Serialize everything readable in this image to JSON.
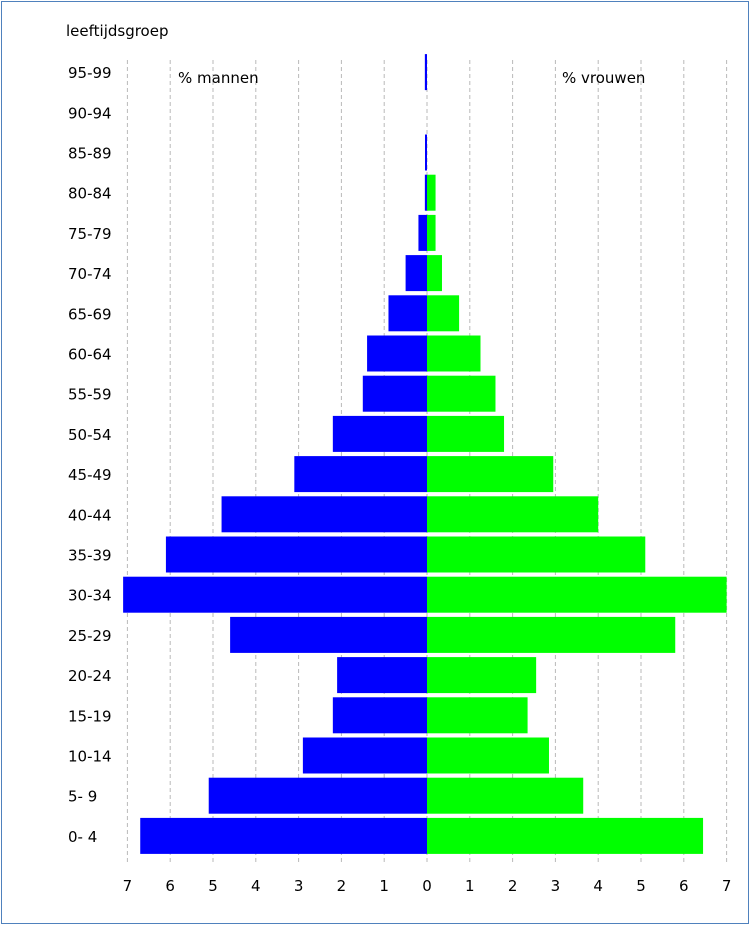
{
  "chart_data": {
    "type": "bar",
    "title": "leeftijdsgroep",
    "left_label": "% mannen",
    "right_label": "% vrouwen",
    "categories": [
      "95-99",
      "90-94",
      "85-89",
      "80-84",
      "75-79",
      "70-74",
      "65-69",
      "60-64",
      "55-59",
      "50-54",
      "45-49",
      "40-44",
      "35-39",
      "30-34",
      "25-29",
      "20-24",
      "15-19",
      "10-14",
      "5- 9",
      "0- 4"
    ],
    "series": [
      {
        "name": "% mannen",
        "color": "#0000ff",
        "values": [
          0.05,
          0,
          0.03,
          0.05,
          0.2,
          0.5,
          0.9,
          1.4,
          1.5,
          2.2,
          3.1,
          4.8,
          6.1,
          7.1,
          4.6,
          2.1,
          2.2,
          2.9,
          5.1,
          6.7
        ]
      },
      {
        "name": "% vrouwen",
        "color": "#00ff00",
        "values": [
          0,
          0,
          0,
          0.2,
          0.2,
          0.35,
          0.75,
          1.25,
          1.6,
          1.8,
          2.95,
          4.0,
          5.1,
          7.0,
          5.8,
          2.55,
          2.35,
          2.85,
          3.65,
          6.45
        ]
      }
    ],
    "x_ticks": [
      "7",
      "6",
      "5",
      "4",
      "3",
      "2",
      "1",
      "0",
      "1",
      "2",
      "3",
      "4",
      "5",
      "6",
      "7"
    ],
    "xlim": [
      -7,
      7
    ],
    "grid": true
  }
}
